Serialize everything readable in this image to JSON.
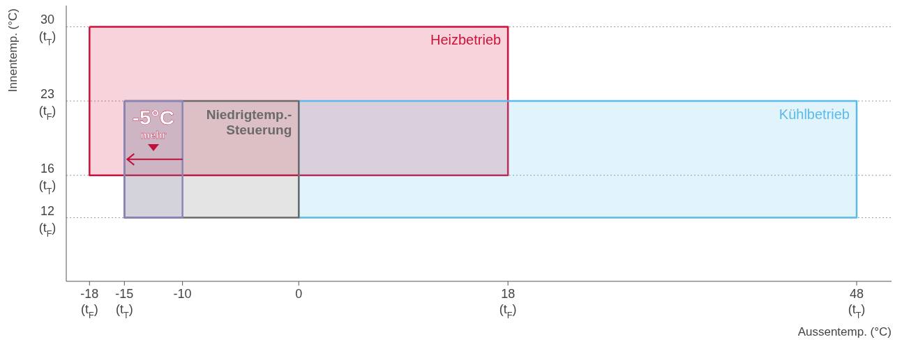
{
  "chart_data": {
    "type": "area",
    "xlabel": "Aussentemp. (°C)",
    "ylabel": "Innentemp. (°C)",
    "xlim": [
      -20,
      51
    ],
    "ylim": [
      6,
      32
    ],
    "xticks": [
      {
        "value": -18,
        "label": "-18 (t$_{F}$)"
      },
      {
        "value": -15,
        "label": "-15 (t$_{T}$)"
      },
      -10,
      0,
      {
        "value": 18,
        "label": "18 (t$_{F}$)"
      },
      {
        "value": 48,
        "label": "48 (t$_{T}$)"
      }
    ],
    "yticks": [
      {
        "value": 12,
        "label": "12 (t$_{F}$)"
      },
      {
        "value": 16,
        "label": "16 (t$_{T}$)"
      },
      {
        "value": 23,
        "label": "23 (t$_{F}$)"
      },
      {
        "value": 30,
        "label": "30 (t$_{T}$)"
      }
    ],
    "grid": "y",
    "series": [
      {
        "name": "Heizbetrieb",
        "color": "#d0103a",
        "x": [
          -18,
          18,
          18,
          -18,
          -18
        ],
        "values": [
          30,
          30,
          16,
          16,
          30
        ]
      },
      {
        "name": "Kühlbetrieb",
        "color": "#5bbbe8",
        "x": [
          0,
          48,
          48,
          0,
          0
        ],
        "values": [
          23,
          23,
          12,
          12,
          23
        ]
      },
      {
        "name": "Niedrigtemp.-Steuerung",
        "color": "#6a6a6a",
        "x": [
          -15,
          0,
          0,
          -15,
          -15
        ],
        "values": [
          23,
          23,
          12,
          12,
          23
        ]
      },
      {
        "color": "#8a84b8",
        "x": [
          -15,
          -10,
          -10,
          -15,
          -15
        ],
        "values": [
          23,
          23,
          12,
          12,
          23
        ]
      }
    ],
    "annotations": [
      "-5°C",
      "mehr"
    ]
  }
}
